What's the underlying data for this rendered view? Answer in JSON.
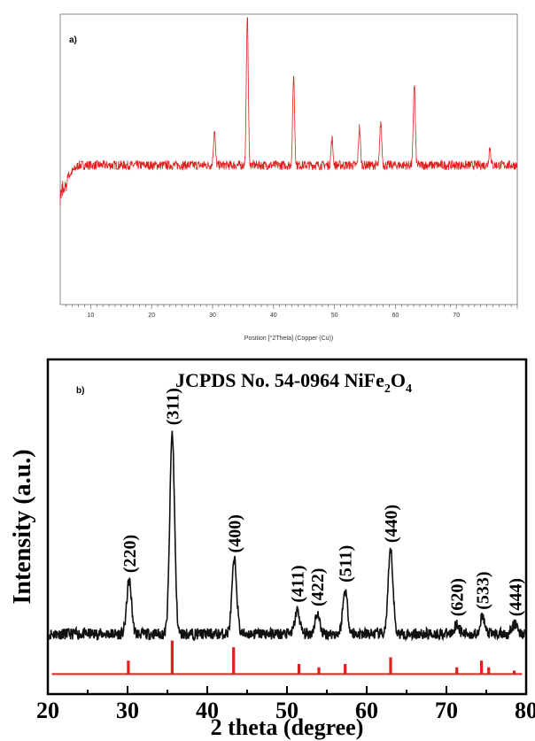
{
  "chart_data": [
    {
      "panel_label": "a)",
      "type": "line",
      "xlabel": "Position [°2Theta] (Copper (Cu))",
      "ylabel": "",
      "xlim": [
        5,
        80
      ],
      "ylim": [
        0,
        100
      ],
      "xticks": [
        10,
        20,
        30,
        40,
        50,
        60,
        70
      ],
      "grid": false,
      "color": "#e0201e",
      "baseline": 48,
      "peaks": [
        {
          "x": 30.3,
          "y": 60
        },
        {
          "x": 35.7,
          "y": 100
        },
        {
          "x": 43.3,
          "y": 79
        },
        {
          "x": 49.6,
          "y": 57
        },
        {
          "x": 54.1,
          "y": 61
        },
        {
          "x": 57.6,
          "y": 63
        },
        {
          "x": 63.1,
          "y": 76
        },
        {
          "x": 75.5,
          "y": 54
        }
      ]
    },
    {
      "panel_label": "b)",
      "type": "line",
      "title_pre": "JCPDS No. 54-0964 NiFe",
      "title_sub": "2",
      "title_post": "O",
      "title_sub2": "4",
      "xlabel": "2 theta (degree)",
      "ylabel": "Intensity (a.u.)",
      "xlim": [
        20,
        80
      ],
      "ylim": [
        0,
        100
      ],
      "xticks": [
        20,
        30,
        40,
        50,
        60,
        70,
        80
      ],
      "grid": false,
      "color": "#111111",
      "ref_color": "#e0201e",
      "baseline": 18,
      "peaks": [
        {
          "x": 30.2,
          "y": 34,
          "label": "(220)"
        },
        {
          "x": 35.6,
          "y": 78,
          "label": "(311)"
        },
        {
          "x": 43.4,
          "y": 40,
          "label": "(400)"
        },
        {
          "x": 51.3,
          "y": 25,
          "label": "(411)"
        },
        {
          "x": 53.8,
          "y": 24,
          "label": "(422)"
        },
        {
          "x": 57.3,
          "y": 31,
          "label": "(511)"
        },
        {
          "x": 63.0,
          "y": 43,
          "label": "(440)"
        },
        {
          "x": 71.3,
          "y": 21,
          "label": "(620)"
        },
        {
          "x": 74.5,
          "y": 23,
          "label": "(533)"
        },
        {
          "x": 78.6,
          "y": 21,
          "label": "(444)"
        }
      ],
      "reference_lines": [
        {
          "x": 30.1,
          "h": 4
        },
        {
          "x": 35.6,
          "h": 10
        },
        {
          "x": 43.3,
          "h": 8
        },
        {
          "x": 51.5,
          "h": 3
        },
        {
          "x": 54.0,
          "h": 2
        },
        {
          "x": 57.3,
          "h": 3
        },
        {
          "x": 63.0,
          "h": 5
        },
        {
          "x": 71.3,
          "h": 2
        },
        {
          "x": 74.4,
          "h": 4
        },
        {
          "x": 75.3,
          "h": 2
        },
        {
          "x": 78.5,
          "h": 1
        }
      ]
    }
  ]
}
